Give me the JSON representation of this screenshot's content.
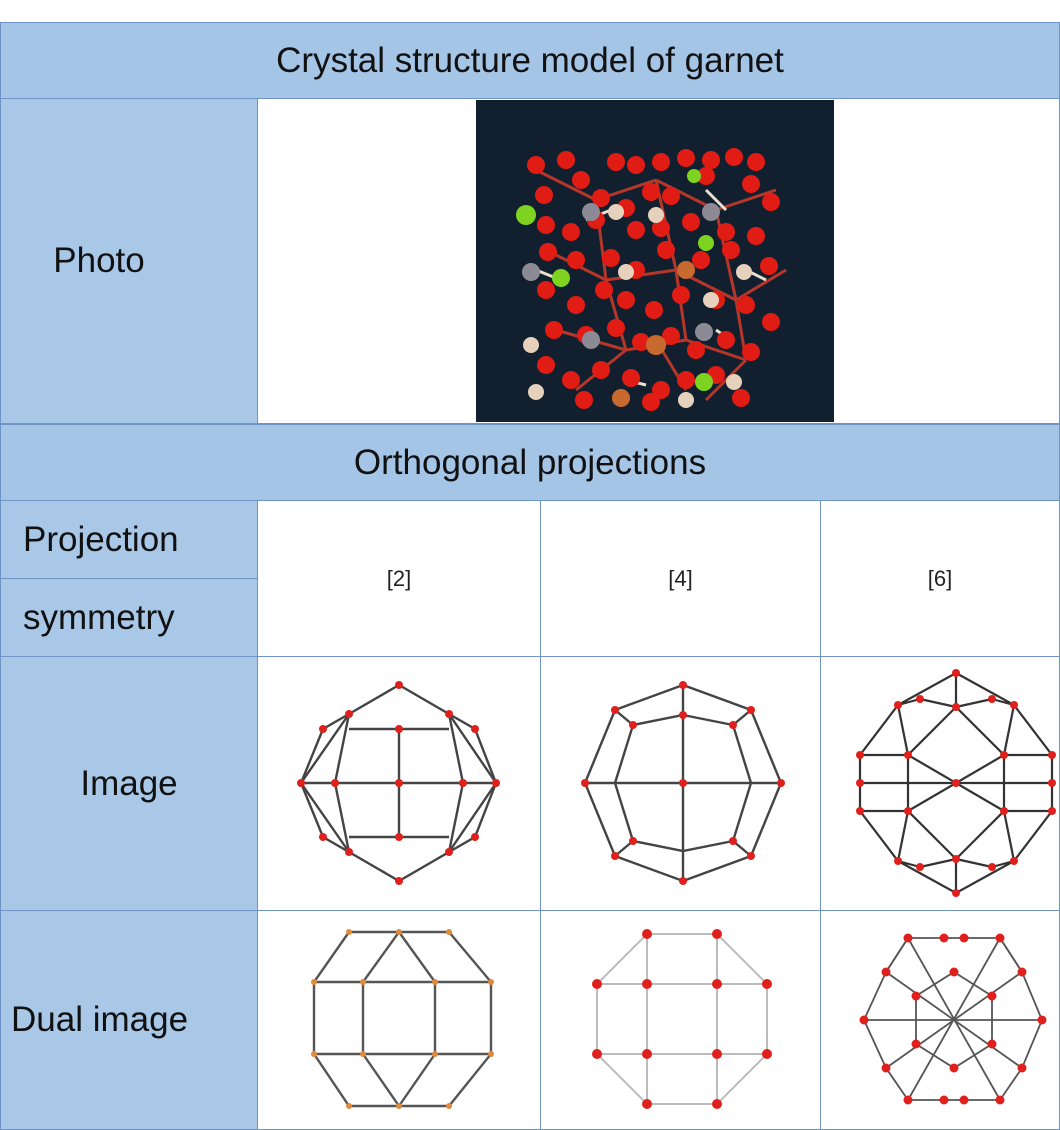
{
  "table": {
    "title": "Crystal structure model of garnet",
    "photo_label": "Photo",
    "section_title": "Orthogonal projections",
    "projection_label_1": "Projection",
    "projection_label_2": "symmetry",
    "symmetries": [
      "[2]",
      "[4]",
      "[6]"
    ],
    "image_label": "Image",
    "dual_label": "Dual image"
  },
  "colors": {
    "header_bg": "#a5c5e6",
    "border": "#6e93c4",
    "vertex": "#e0201c",
    "edge": "#333333",
    "crystal_bg": "#111f2e"
  }
}
